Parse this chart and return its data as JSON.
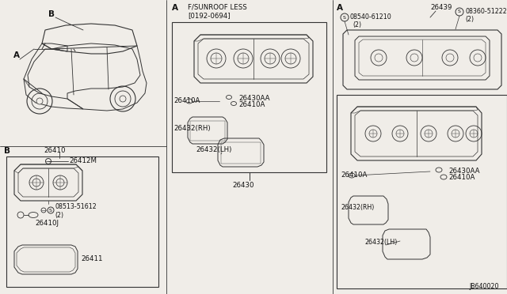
{
  "bg_color": "#f0ede8",
  "line_color": "#333333",
  "text_color": "#111111",
  "diagram_code": "JB640020",
  "sections": {
    "mid_condition": "F/SUNROOF LESS",
    "mid_date": "[0192-0694]",
    "mid_part_26430": "26430",
    "mid_part_26410A_l": "26410A",
    "mid_part_26430AA": "26430AA",
    "mid_part_26410A_r": "26410A",
    "mid_part_26432RH": "26432(RH)",
    "mid_part_26432LH": "26432(LH)",
    "right_part_26439": "26439",
    "right_part_s08540_num": "08540-61210",
    "right_part_s08540_qty": "(2)",
    "right_part_s08360_num": "08360-51222",
    "right_part_s08360_qty": "(2)",
    "right_part_26410A_1": "26410A",
    "right_part_26430AA": "26430AA",
    "right_part_26410A_2": "26410A",
    "right_part_26432RH": "26432(RH)",
    "right_part_26432LH": "26432(LH)",
    "b_part_26410": "26410",
    "b_part_26412M": "26412M",
    "b_part_s08513_num": "08513-51612",
    "b_part_s08513_qty": "(2)",
    "b_part_26410J": "26410J",
    "b_part_26411": "26411"
  }
}
